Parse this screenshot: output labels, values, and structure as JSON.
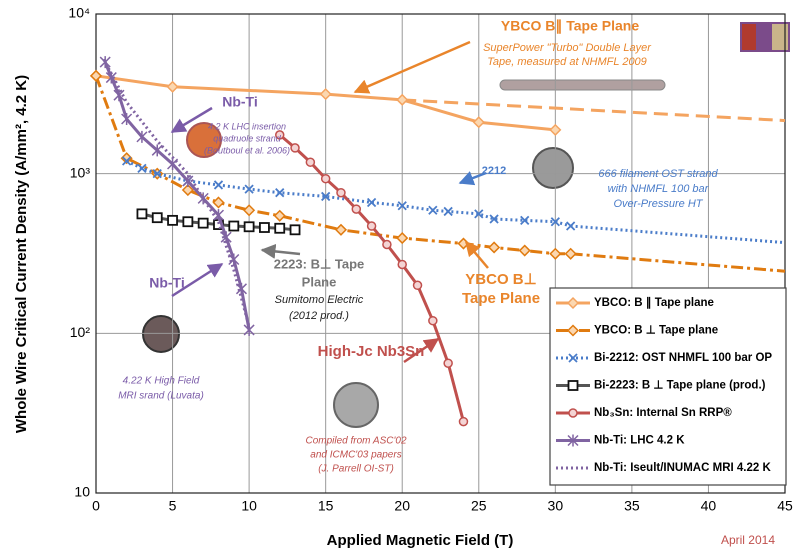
{
  "chart_data": {
    "type": "line",
    "x_label": "Applied Magnetic Field (T)",
    "y_label": "Whole Wire Critical Current Density (A/mm², 4.2 K)",
    "log_y": true,
    "grid": true,
    "legend": "lower right",
    "xlim": [
      0,
      45
    ],
    "xticks": [
      0,
      5,
      10,
      15,
      20,
      25,
      30,
      35,
      40,
      45
    ],
    "ylim": [
      10,
      10000
    ],
    "yticks": [
      {
        "value": 10,
        "label": "10"
      },
      {
        "value": 100,
        "label": "10²"
      },
      {
        "value": 1000,
        "label": "10³"
      },
      {
        "value": 10000,
        "label": "10⁴"
      }
    ],
    "series": [
      {
        "name": "YBCO: B ∥ Tape plane",
        "color": "#f4a460",
        "line": "solid",
        "marker": "diamond",
        "x": [
          0,
          5,
          15,
          20,
          25,
          30
        ],
        "values": [
          4100,
          3500,
          3150,
          2900,
          2100,
          1880
        ],
        "extrapolation": {
          "x": [
            20,
            45
          ],
          "values": [
            2900,
            2150
          ]
        }
      },
      {
        "name": "YBCO: B ⊥ Tape plane",
        "color": "#e07b10",
        "line": "dashdot",
        "marker": "diamond",
        "x": [
          0,
          2,
          4,
          6,
          8,
          10,
          12,
          16,
          20,
          24,
          26,
          28,
          30,
          31
        ],
        "values": [
          4100,
          1250,
          1000,
          790,
          660,
          590,
          545,
          445,
          395,
          365,
          345,
          330,
          315,
          315
        ],
        "extrapolation": {
          "x": [
            31,
            45
          ],
          "values": [
            315,
            245
          ]
        }
      },
      {
        "name": "Bi-2212: OST NHMFL 100 bar OP",
        "color": "#4a7cc9",
        "line": "dotted",
        "marker": "x",
        "x": [
          2,
          3,
          4,
          6,
          8,
          10,
          12,
          15,
          18,
          20,
          22,
          23,
          25,
          26,
          28,
          30,
          31
        ],
        "values": [
          1200,
          1080,
          1000,
          900,
          850,
          800,
          760,
          720,
          660,
          630,
          590,
          580,
          560,
          520,
          510,
          500,
          470
        ],
        "extrapolation": {
          "x": [
            31,
            45
          ],
          "values": [
            470,
            370
          ]
        }
      },
      {
        "name": "Bi-2223: B ⊥ Tape plane (prod.)",
        "color": "#555555",
        "line": "solid",
        "marker": "square",
        "x": [
          3,
          4,
          5,
          6,
          7,
          8,
          9,
          10,
          11,
          12,
          13
        ],
        "values": [
          560,
          530,
          510,
          500,
          490,
          480,
          470,
          465,
          460,
          455,
          445
        ]
      },
      {
        "name": "Nb₃Sn: Internal Sn RRP®",
        "color": "#c0504d",
        "line": "solid",
        "marker": "circle",
        "x": [
          12,
          13,
          14,
          15,
          16,
          17,
          18,
          19,
          20,
          21,
          22,
          23,
          24
        ],
        "values": [
          1750,
          1450,
          1180,
          930,
          760,
          600,
          470,
          360,
          270,
          200,
          120,
          65,
          28
        ]
      },
      {
        "name": "Nb-Ti: LHC 4.2 K",
        "color": "#8064a2",
        "line": "solid",
        "marker": "star",
        "x": [
          0.6,
          1,
          1.5,
          2,
          3,
          4,
          5,
          6,
          7,
          8,
          8.5,
          9,
          9.5,
          10
        ],
        "values": [
          5000,
          4000,
          3100,
          2200,
          1700,
          1400,
          1150,
          900,
          700,
          550,
          400,
          290,
          190,
          105
        ]
      },
      {
        "name": "Nb-Ti: Iseult/INUMAC MRI 4.22 K",
        "color": "#8064a2",
        "line": "dotted",
        "marker": "none",
        "x": [
          0.5,
          2,
          4,
          6,
          7,
          8,
          9,
          10
        ],
        "values": [
          5200,
          2800,
          1600,
          1000,
          700,
          500,
          250,
          110
        ]
      }
    ],
    "annotations": [
      "YBCO B∥ Tape Plane",
      "SuperPower \"Turbo\" Double Layer",
      "Tape, measured at NHMFL 2009",
      "Nb-Ti",
      "4.2 K LHC insertion",
      "quadruole strand",
      "(Boutboul et al. 2006)",
      "2212",
      "666 filament OST strand",
      "with NHMFL 100 bar",
      "Over-Pressure HT",
      "2223: B⊥ Tape",
      "Plane",
      "Sumitomo Electric",
      "(2012 prod.)",
      "YBCO B⊥",
      "Tape Plane",
      "Nb-Ti",
      "4.22 K High Field",
      "MRI srand (Luvata)",
      "High-Jc Nb3Sn",
      "Compiled from ASC'02",
      "and ICMC'03 papers",
      "(J. Parrell OI-ST)",
      "April 2014"
    ]
  }
}
